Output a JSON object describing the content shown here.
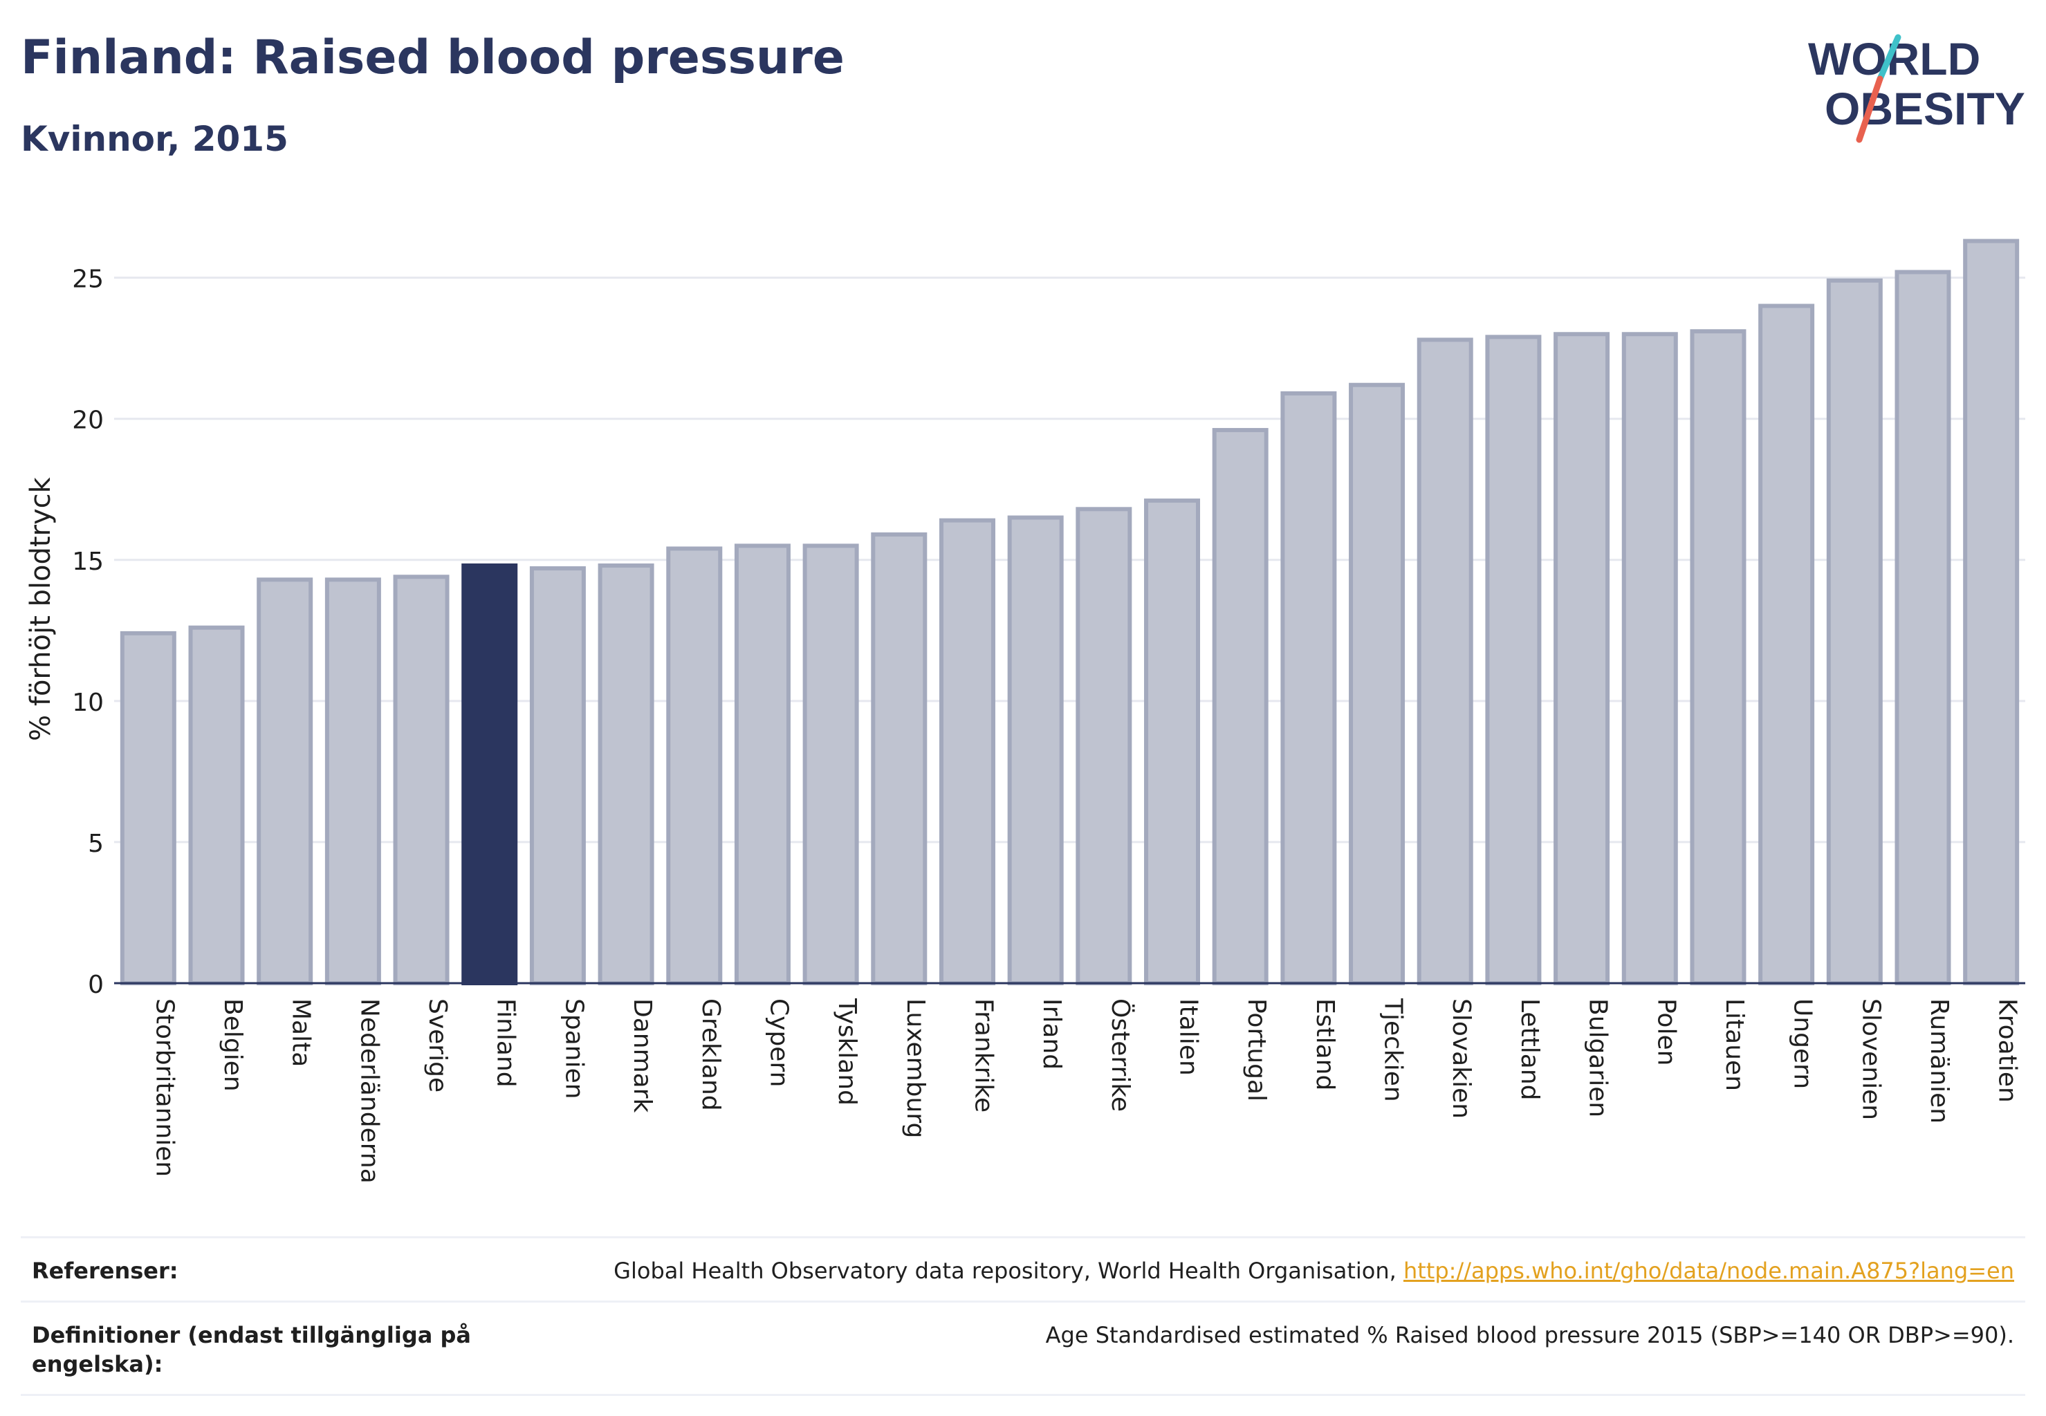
{
  "header": {
    "title": "Finland: Raised blood pressure",
    "subtitle": "Kvinnor, 2015"
  },
  "logo": {
    "line1": "WORLD",
    "line2": "OBESITY",
    "text_color": "#2b365f",
    "slash_colors": [
      "#3fc1c9",
      "#e8614f"
    ]
  },
  "chart_data": {
    "type": "bar",
    "ylabel": "% förhöjt blodtryck",
    "xlabel": "",
    "ylim": [
      0,
      27
    ],
    "yticks": [
      0,
      5,
      10,
      15,
      20,
      25
    ],
    "grid": true,
    "highlight": "Finland",
    "colors": {
      "default": "#bfc3d0",
      "default_border": "#a3a9bd",
      "highlight": "#2b365f"
    },
    "categories": [
      "Storbritannien",
      "Belgien",
      "Malta",
      "Nederländerna",
      "Sverige",
      "Finland",
      "Spanien",
      "Danmark",
      "Grekland",
      "Cypern",
      "Tyskland",
      "Luxemburg",
      "Frankrike",
      "Irland",
      "Österrike",
      "Italien",
      "Portugal",
      "Estland",
      "Tjeckien",
      "Slovakien",
      "Lettland",
      "Bulgarien",
      "Polen",
      "Litauen",
      "Ungern",
      "Slovenien",
      "Rumänien",
      "Kroatien"
    ],
    "values": [
      12.4,
      12.6,
      14.3,
      14.3,
      14.4,
      14.8,
      14.7,
      14.8,
      15.4,
      15.5,
      15.5,
      15.9,
      16.4,
      16.5,
      16.8,
      17.1,
      19.6,
      20.9,
      21.2,
      22.8,
      22.9,
      23.0,
      23.0,
      23.1,
      24.0,
      24.9,
      25.2,
      26.3
    ]
  },
  "references": {
    "ref_label": "Referenser:",
    "ref_text": "Global Health Observatory data repository, World Health Organisation, ",
    "ref_link": "http://apps.who.int/gho/data/node.main.A875?lang=en",
    "def_label": "Definitioner (endast tillgängliga på engelska):",
    "def_text": "Age Standardised estimated % Raised blood pressure 2015 (SBP>=140 OR DBP>=90)."
  }
}
